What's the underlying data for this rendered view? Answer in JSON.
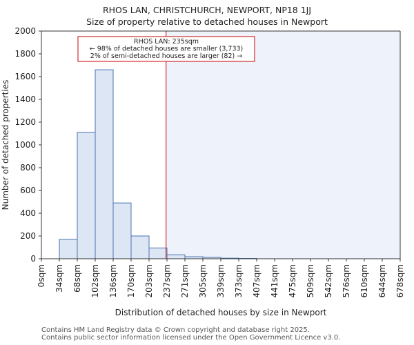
{
  "chart_data": {
    "type": "bar",
    "title": "RHOS LAN, CHRISTCHURCH, NEWPORT, NP18 1JJ",
    "subtitle": "Size of property relative to detached houses in Newport",
    "xlabel": "Distribution of detached houses by size in Newport",
    "ylabel": "Number of detached properties",
    "ylim": [
      0,
      2000
    ],
    "yticks": [
      0,
      200,
      400,
      600,
      800,
      1000,
      1200,
      1400,
      1600,
      1800,
      2000
    ],
    "bin_edges": [
      "0sqm",
      "34sqm",
      "68sqm",
      "102sqm",
      "136sqm",
      "170sqm",
      "203sqm",
      "237sqm",
      "271sqm",
      "305sqm",
      "339sqm",
      "373sqm",
      "407sqm",
      "441sqm",
      "475sqm",
      "509sqm",
      "542sqm",
      "576sqm",
      "610sqm",
      "644sqm",
      "678sqm"
    ],
    "values": [
      0,
      170,
      1110,
      1660,
      490,
      200,
      95,
      35,
      18,
      12,
      5,
      3,
      0,
      0,
      0,
      0,
      0,
      0,
      0,
      0
    ],
    "marker": {
      "bin_position": 6.95,
      "color": "#cc0000"
    },
    "annotation": {
      "lines": [
        "RHOS LAN: 235sqm",
        "← 98% of detached houses are smaller (3,733)",
        "2% of semi-detached houses are larger (82) →"
      ]
    },
    "bar_color": "#dce6f4",
    "bar_edge_color": "#4a72b0",
    "highlight_color": "#eef2fa"
  },
  "footer": {
    "line1": "Contains HM Land Registry data © Crown copyright and database right 2025.",
    "line2": "Contains public sector information licensed under the Open Government Licence v3.0."
  }
}
